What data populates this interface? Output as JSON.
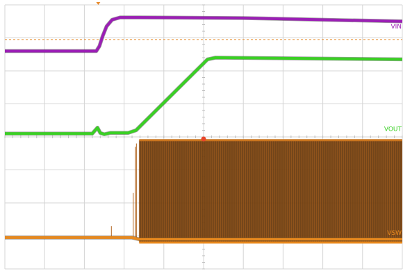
{
  "chart_data": {
    "type": "line",
    "title": "",
    "xlabel": "",
    "ylabel": "",
    "grid": true,
    "grid_divisions": {
      "x": 10,
      "y": 8
    },
    "xlim": [
      0,
      10
    ],
    "ylim": [
      0,
      8
    ],
    "trigger_level": 6.95,
    "series": [
      {
        "name": "VIN",
        "color": "#9b1fb5",
        "label_y": 7.2,
        "x": [
          0,
          2.3,
          2.38,
          2.46,
          2.56,
          2.7,
          2.9,
          3.4,
          6,
          10
        ],
        "y": [
          6.6,
          6.6,
          6.75,
          7.05,
          7.35,
          7.55,
          7.62,
          7.62,
          7.6,
          7.5
        ]
      },
      {
        "name": "VOUT",
        "color": "#3ad024",
        "label_y": 4.1,
        "x": [
          0,
          2.2,
          2.33,
          2.4,
          2.5,
          2.65,
          3.1,
          3.3,
          5.1,
          5.3,
          10
        ],
        "y": [
          4.1,
          4.1,
          4.28,
          4.12,
          4.08,
          4.12,
          4.12,
          4.2,
          6.35,
          6.4,
          6.35
        ]
      },
      {
        "name": "VSW",
        "color": "#e8891e",
        "label_y": 0.95,
        "x": [
          0,
          3.2,
          3.38,
          10
        ],
        "y": [
          0.95,
          0.95,
          0.9,
          0.9
        ],
        "switching": {
          "start": 3.38,
          "end": 10,
          "low": 0.8,
          "high": 3.9
        }
      }
    ]
  }
}
